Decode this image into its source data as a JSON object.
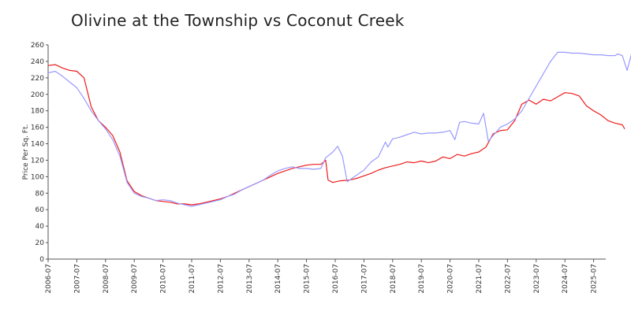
{
  "chart_data": {
    "type": "line",
    "title": "Olivine at the Township vs Coconut Creek",
    "xlabel": "",
    "ylabel": "Price Per Sq. Ft.",
    "ylim": [
      0,
      260
    ],
    "yticks": [
      0,
      20,
      40,
      60,
      80,
      100,
      120,
      140,
      160,
      180,
      200,
      220,
      240,
      260
    ],
    "xticks": [
      "2006-07",
      "2007-07",
      "2008-07",
      "2009-07",
      "2010-07",
      "2011-07",
      "2012-07",
      "2013-07",
      "2014-07",
      "2015-07",
      "2016-07",
      "2017-07",
      "2018-07",
      "2019-07",
      "2020-07",
      "2021-07",
      "2022-07",
      "2023-07",
      "2024-07",
      "2025-07"
    ],
    "grid": false,
    "legend": "none",
    "series": [
      {
        "color": "#ee1c1c",
        "points": [
          [
            "2006-07",
            235
          ],
          [
            "2006-10",
            236
          ],
          [
            "2007-01",
            232
          ],
          [
            "2007-04",
            229
          ],
          [
            "2007-07",
            228
          ],
          [
            "2007-10",
            220
          ],
          [
            "2008-01",
            185
          ],
          [
            "2008-04",
            168
          ],
          [
            "2008-07",
            160
          ],
          [
            "2008-10",
            150
          ],
          [
            "2009-01",
            130
          ],
          [
            "2009-04",
            95
          ],
          [
            "2009-07",
            82
          ],
          [
            "2009-10",
            77
          ],
          [
            "2010-01",
            74
          ],
          [
            "2010-04",
            71
          ],
          [
            "2010-07",
            70
          ],
          [
            "2010-10",
            69
          ],
          [
            "2011-01",
            67
          ],
          [
            "2011-04",
            67
          ],
          [
            "2011-07",
            66
          ],
          [
            "2011-10",
            67
          ],
          [
            "2012-01",
            69
          ],
          [
            "2012-04",
            71
          ],
          [
            "2012-07",
            73
          ],
          [
            "2012-10",
            76
          ],
          [
            "2013-01",
            80
          ],
          [
            "2013-04",
            84
          ],
          [
            "2013-07",
            88
          ],
          [
            "2013-10",
            92
          ],
          [
            "2014-01",
            96
          ],
          [
            "2014-04",
            100
          ],
          [
            "2014-07",
            104
          ],
          [
            "2014-10",
            107
          ],
          [
            "2015-01",
            110
          ],
          [
            "2015-04",
            112
          ],
          [
            "2015-07",
            114
          ],
          [
            "2015-10",
            115
          ],
          [
            "2016-01",
            115
          ],
          [
            "2016-03",
            120
          ],
          [
            "2016-04",
            96
          ],
          [
            "2016-06",
            93
          ],
          [
            "2016-09",
            95
          ],
          [
            "2017-01",
            96
          ],
          [
            "2017-04",
            98
          ],
          [
            "2017-07",
            101
          ],
          [
            "2017-10",
            104
          ],
          [
            "2018-01",
            108
          ],
          [
            "2018-04",
            111
          ],
          [
            "2018-07",
            113
          ],
          [
            "2018-10",
            115
          ],
          [
            "2019-01",
            118
          ],
          [
            "2019-04",
            117
          ],
          [
            "2019-07",
            119
          ],
          [
            "2019-10",
            117
          ],
          [
            "2020-01",
            119
          ],
          [
            "2020-04",
            124
          ],
          [
            "2020-07",
            122
          ],
          [
            "2020-10",
            127
          ],
          [
            "2021-01",
            125
          ],
          [
            "2021-04",
            128
          ],
          [
            "2021-07",
            130
          ],
          [
            "2021-10",
            136
          ],
          [
            "2022-01",
            152
          ],
          [
            "2022-04",
            156
          ],
          [
            "2022-07",
            157
          ],
          [
            "2022-10",
            168
          ],
          [
            "2023-01",
            188
          ],
          [
            "2023-04",
            193
          ],
          [
            "2023-07",
            188
          ],
          [
            "2023-10",
            194
          ],
          [
            "2024-01",
            192
          ],
          [
            "2024-04",
            197
          ],
          [
            "2024-07",
            202
          ],
          [
            "2024-10",
            201
          ],
          [
            "2025-01",
            198
          ],
          [
            "2025-04",
            186
          ],
          [
            "2025-07",
            180
          ],
          [
            "2025-10",
            175
          ],
          [
            "2026-01",
            168
          ],
          [
            "2026-04",
            165
          ],
          [
            "2026-07",
            163
          ],
          [
            "2026-08",
            158
          ]
        ]
      },
      {
        "color": "#9999ff",
        "points": [
          [
            "2006-07",
            226
          ],
          [
            "2006-10",
            228
          ],
          [
            "2007-01",
            222
          ],
          [
            "2007-04",
            215
          ],
          [
            "2007-07",
            208
          ],
          [
            "2007-10",
            195
          ],
          [
            "2008-01",
            180
          ],
          [
            "2008-04",
            168
          ],
          [
            "2008-07",
            158
          ],
          [
            "2008-10",
            145
          ],
          [
            "2009-01",
            125
          ],
          [
            "2009-04",
            93
          ],
          [
            "2009-07",
            80
          ],
          [
            "2009-10",
            76
          ],
          [
            "2010-01",
            74
          ],
          [
            "2010-04",
            71
          ],
          [
            "2010-07",
            72
          ],
          [
            "2010-10",
            71
          ],
          [
            "2011-01",
            68
          ],
          [
            "2011-04",
            66
          ],
          [
            "2011-07",
            64
          ],
          [
            "2011-10",
            66
          ],
          [
            "2012-01",
            68
          ],
          [
            "2012-04",
            70
          ],
          [
            "2012-07",
            72
          ],
          [
            "2012-10",
            76
          ],
          [
            "2013-01",
            79
          ],
          [
            "2013-04",
            84
          ],
          [
            "2013-07",
            88
          ],
          [
            "2013-10",
            92
          ],
          [
            "2014-01",
            96
          ],
          [
            "2014-04",
            102
          ],
          [
            "2014-07",
            107
          ],
          [
            "2014-10",
            110
          ],
          [
            "2015-01",
            112
          ],
          [
            "2015-04",
            110
          ],
          [
            "2015-07",
            110
          ],
          [
            "2015-10",
            109
          ],
          [
            "2016-01",
            110
          ],
          [
            "2016-03",
            123
          ],
          [
            "2016-06",
            130
          ],
          [
            "2016-08",
            137
          ],
          [
            "2016-10",
            125
          ],
          [
            "2016-12",
            94
          ],
          [
            "2017-03",
            100
          ],
          [
            "2017-07",
            108
          ],
          [
            "2017-10",
            118
          ],
          [
            "2018-01",
            124
          ],
          [
            "2018-04",
            142
          ],
          [
            "2018-05",
            136
          ],
          [
            "2018-07",
            146
          ],
          [
            "2018-10",
            148
          ],
          [
            "2019-01",
            151
          ],
          [
            "2019-04",
            154
          ],
          [
            "2019-07",
            152
          ],
          [
            "2019-10",
            153
          ],
          [
            "2020-01",
            153
          ],
          [
            "2020-04",
            154
          ],
          [
            "2020-07",
            156
          ],
          [
            "2020-09",
            145
          ],
          [
            "2020-11",
            166
          ],
          [
            "2021-01",
            167
          ],
          [
            "2021-04",
            165
          ],
          [
            "2021-07",
            164
          ],
          [
            "2021-09",
            177
          ],
          [
            "2021-11",
            143
          ],
          [
            "2022-01",
            150
          ],
          [
            "2022-04",
            160
          ],
          [
            "2022-07",
            164
          ],
          [
            "2022-10",
            170
          ],
          [
            "2023-01",
            180
          ],
          [
            "2023-04",
            195
          ],
          [
            "2023-07",
            210
          ],
          [
            "2023-10",
            225
          ],
          [
            "2024-01",
            240
          ],
          [
            "2024-04",
            251
          ],
          [
            "2024-07",
            251
          ],
          [
            "2024-10",
            250
          ],
          [
            "2025-01",
            250
          ],
          [
            "2025-04",
            249
          ],
          [
            "2025-07",
            248
          ],
          [
            "2025-10",
            248
          ],
          [
            "2026-01",
            247
          ],
          [
            "2026-04",
            247
          ],
          [
            "2026-05",
            249
          ],
          [
            "2026-07",
            247
          ],
          [
            "2026-09",
            229
          ],
          [
            "2026-11",
            251
          ],
          [
            "2027-01",
            247
          ],
          [
            "2027-03",
            241
          ]
        ]
      }
    ]
  }
}
